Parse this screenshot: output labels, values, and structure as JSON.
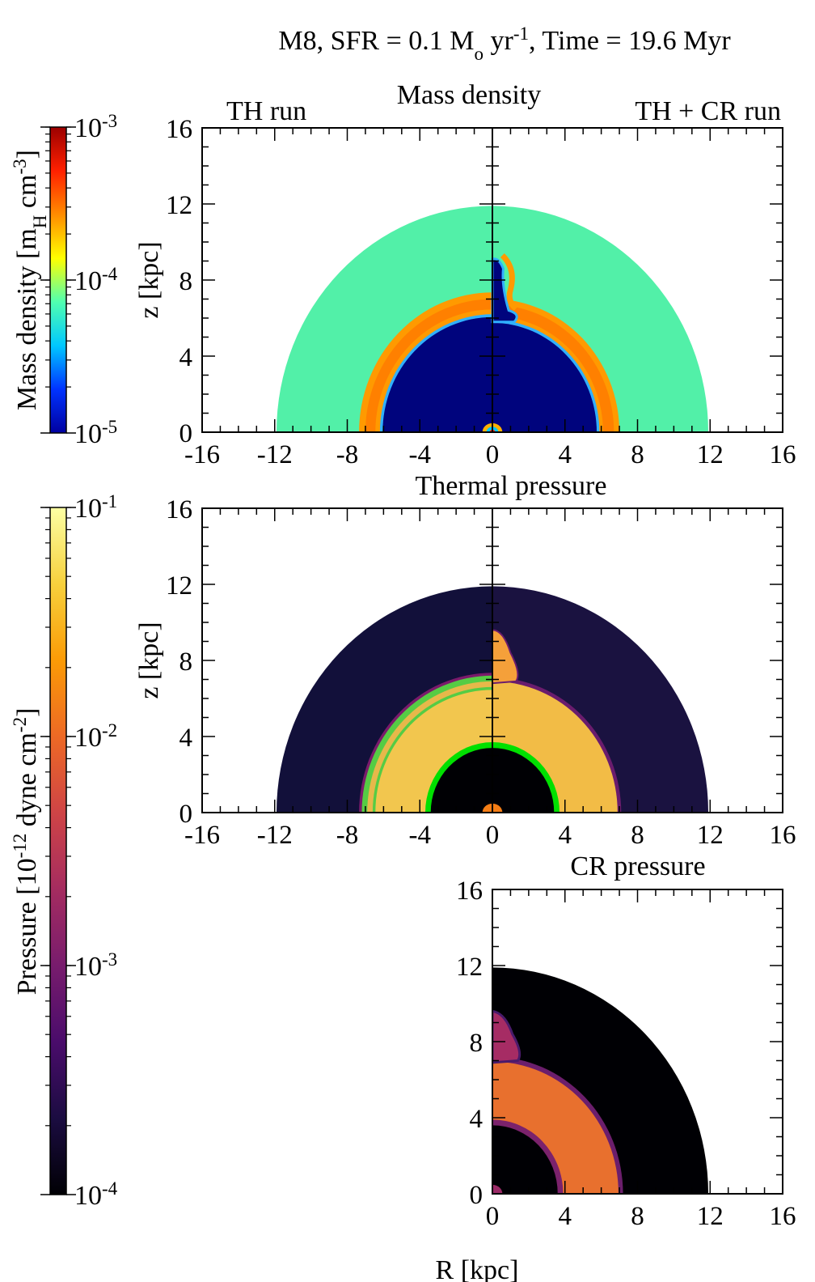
{
  "figure": {
    "title_prefix": "M8, SFR = 0.1 M",
    "title_sub": "o",
    "title_mid": " yr",
    "title_sup": "-1",
    "title_suffix": ", Time = 19.6 Myr"
  },
  "labels": {
    "th_run": "TH run",
    "thcr_run": "TH + CR run",
    "z_kpc": "z [kpc]",
    "r_kpc": "R [kpc]"
  },
  "colorbars": {
    "density": {
      "label_pre": "Mass density [m",
      "label_sub": "H",
      "label_mid": " cm",
      "label_sup": "-3",
      "label_post": "]",
      "ticks": [
        {
          "base": "10",
          "exp": "-3"
        },
        {
          "base": "10",
          "exp": "-4"
        },
        {
          "base": "10",
          "exp": "-5"
        }
      ],
      "stops": [
        "#0000a0",
        "#0033ff",
        "#00c8ff",
        "#50ffb0",
        "#ffff00",
        "#ff8c00",
        "#ff2000",
        "#9b0000"
      ]
    },
    "pressure": {
      "label_pre": "Pressure [10",
      "label_sup1": "-12",
      "label_mid": " dyne cm",
      "label_sup2": "-2",
      "label_post": "]",
      "ticks": [
        {
          "base": "10",
          "exp": "-1"
        },
        {
          "base": "10",
          "exp": "-2"
        },
        {
          "base": "10",
          "exp": "-3"
        },
        {
          "base": "10",
          "exp": "-4"
        }
      ],
      "stops": [
        "#000004",
        "#1b0c41",
        "#4a0c6b",
        "#781c6d",
        "#a52c60",
        "#cf4446",
        "#ed6925",
        "#fb9b06",
        "#f7d13d",
        "#fcffa4"
      ]
    }
  },
  "chart_data": [
    {
      "type": "heatmap",
      "title": "Mass density",
      "xlabel": "",
      "ylabel": "z [kpc]",
      "xlim": [
        -16,
        16
      ],
      "ylim": [
        0,
        16
      ],
      "xticks": [
        "-16",
        "-12",
        "-8",
        "-4",
        "0",
        "4",
        "8",
        "12",
        "16"
      ],
      "yticks": [
        "0",
        "4",
        "8",
        "12",
        "16"
      ],
      "left_label": "TH run",
      "right_label": "TH + CR run",
      "rings_left": [
        {
          "r": 11.9,
          "color": "#52f0a8"
        },
        {
          "r": 7.35,
          "color": "#ff9a00"
        },
        {
          "r": 7.0,
          "color": "#ff8000"
        },
        {
          "r": 6.45,
          "color": "#ff9a00"
        },
        {
          "r": 6.2,
          "color": "#30b0ff"
        },
        {
          "r": 6.05,
          "color": "#00047d"
        }
      ],
      "rings_right": [
        {
          "r": 11.9,
          "color": "#52f0a8"
        },
        {
          "r": 7.0,
          "color": "#ff9a00"
        },
        {
          "r": 6.7,
          "color": "#ff8000"
        },
        {
          "r": 6.1,
          "color": "#ff9a00"
        },
        {
          "r": 5.9,
          "color": "#30b0ff"
        },
        {
          "r": 5.75,
          "color": "#00047d"
        }
      ],
      "center_blob": {
        "color": "#ffb000"
      }
    },
    {
      "type": "heatmap",
      "title": "Thermal pressure",
      "xlabel": "",
      "ylabel": "z [kpc]",
      "xlim": [
        -16,
        16
      ],
      "ylim": [
        0,
        16
      ],
      "xticks": [
        "-16",
        "-12",
        "-8",
        "-4",
        "0",
        "4",
        "8",
        "12",
        "16"
      ],
      "yticks": [
        "0",
        "4",
        "8",
        "12",
        "16"
      ],
      "rings_left": [
        {
          "r": 11.9,
          "color": "#12103a"
        },
        {
          "r": 7.35,
          "color": "#7a1a6b"
        },
        {
          "r": 7.2,
          "color": "#55cc44"
        },
        {
          "r": 6.9,
          "color": "#e7b84a"
        },
        {
          "r": 6.6,
          "color": "#55cc44"
        },
        {
          "r": 6.45,
          "color": "#f2c64e"
        },
        {
          "r": 3.7,
          "color": "#00e000"
        },
        {
          "r": 3.4,
          "color": "#000004"
        }
      ],
      "rings_right": [
        {
          "r": 11.9,
          "color": "#1a1240"
        },
        {
          "r": 7.1,
          "color": "#6a1c6d"
        },
        {
          "r": 6.9,
          "color": "#f2bc46"
        },
        {
          "r": 3.7,
          "color": "#00e000"
        },
        {
          "r": 3.4,
          "color": "#000004"
        }
      ],
      "center_blob": {
        "color": "#f57d15"
      }
    },
    {
      "type": "heatmap",
      "title": "CR pressure",
      "xlabel": "R [kpc]",
      "ylabel": "",
      "xlim": [
        0,
        16
      ],
      "ylim": [
        0,
        16
      ],
      "xticks": [
        "0",
        "4",
        "8",
        "12",
        "16"
      ],
      "yticks": [
        "0",
        "4",
        "8",
        "12",
        "16"
      ],
      "rings_right": [
        {
          "r": 11.9,
          "color": "#000004"
        },
        {
          "r": 7.2,
          "color": "#6b1e6c"
        },
        {
          "r": 6.95,
          "color": "#e8702e"
        },
        {
          "r": 3.9,
          "color": "#7b226c"
        },
        {
          "r": 3.6,
          "color": "#000004"
        }
      ],
      "center_blob": {
        "color": "#9a2a66"
      }
    }
  ]
}
